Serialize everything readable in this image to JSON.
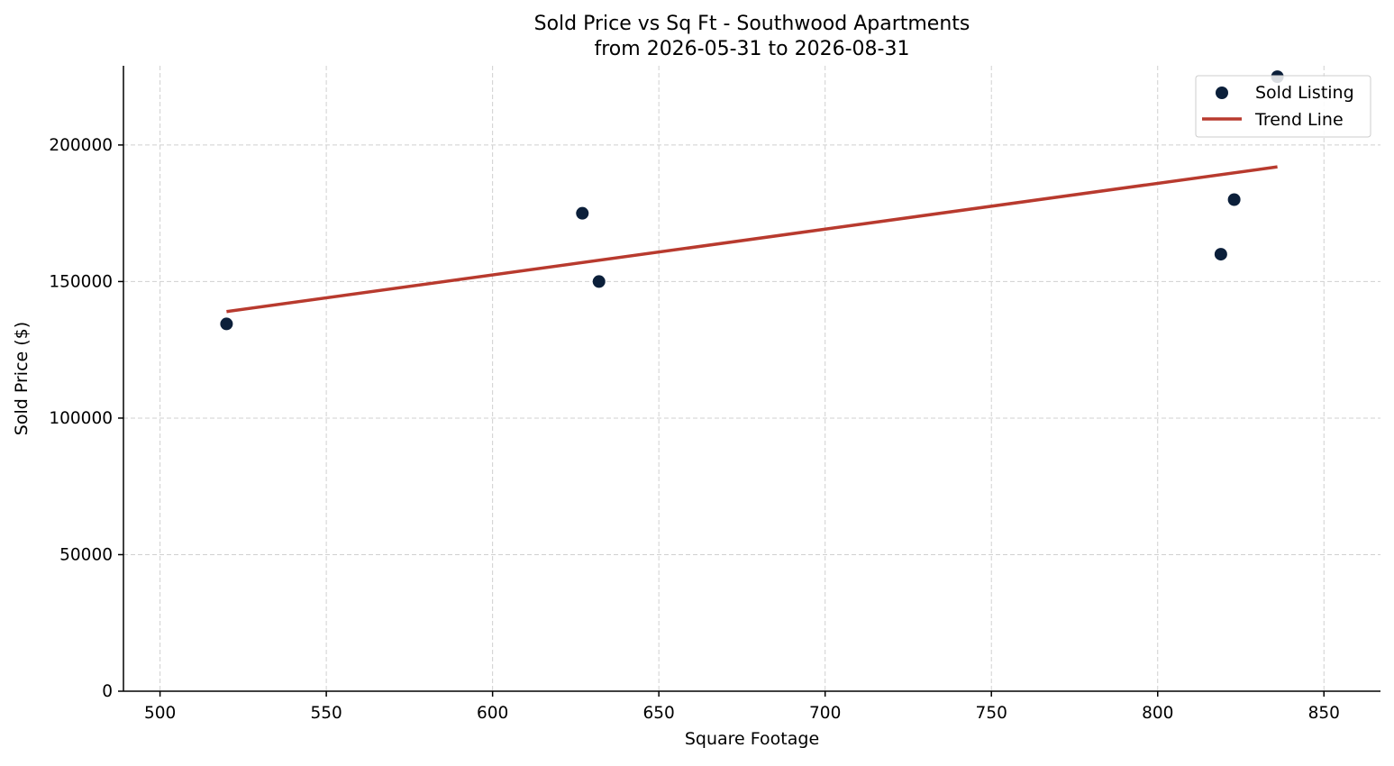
{
  "chart_data": {
    "type": "scatter",
    "title": "Sold Price vs Sq Ft - Southwood Apartments",
    "subtitle": "from 2026-05-31 to 2026-08-31",
    "xlabel": "Square Footage",
    "ylabel": "Sold Price ($)",
    "xlim": [
      489,
      867
    ],
    "ylim": [
      0,
      229000
    ],
    "xticks": [
      500,
      550,
      600,
      650,
      700,
      750,
      800,
      850
    ],
    "yticks": [
      0,
      50000,
      100000,
      150000,
      200000
    ],
    "grid": true,
    "legend_position": "top-right",
    "series": [
      {
        "name": "Sold Listing",
        "kind": "scatter",
        "color": "#0b1f3a",
        "points": [
          {
            "x": 520,
            "y": 134500
          },
          {
            "x": 627,
            "y": 175000
          },
          {
            "x": 632,
            "y": 150000
          },
          {
            "x": 819,
            "y": 160000
          },
          {
            "x": 823,
            "y": 180000
          },
          {
            "x": 836,
            "y": 225000
          }
        ]
      },
      {
        "name": "Trend Line",
        "kind": "line",
        "color": "#b83a2e",
        "points": [
          {
            "x": 520,
            "y": 139000
          },
          {
            "x": 836,
            "y": 192000
          }
        ]
      }
    ]
  }
}
